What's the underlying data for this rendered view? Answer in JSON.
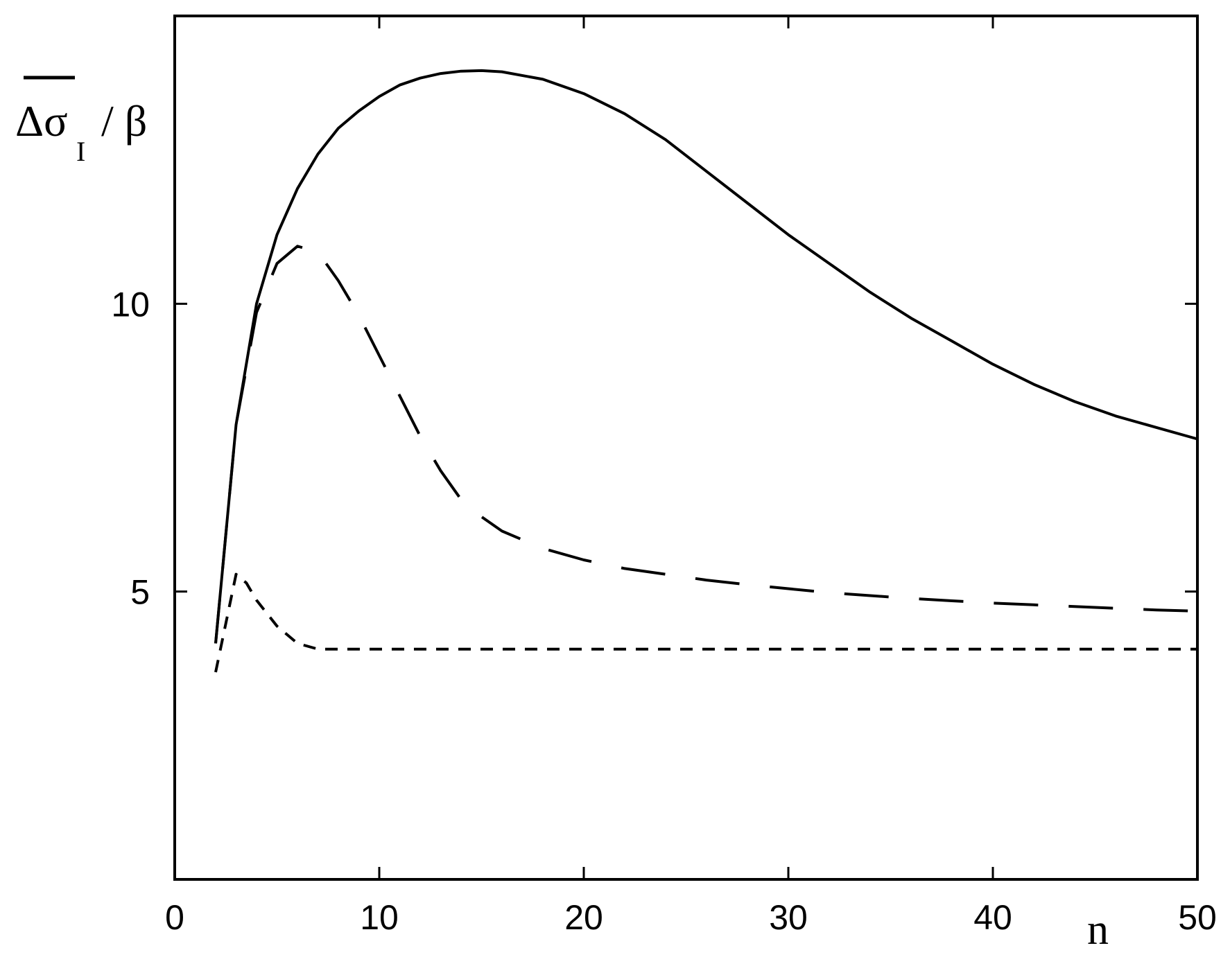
{
  "chart_data": {
    "type": "line",
    "xlim": [
      0,
      50
    ],
    "ylim": [
      0,
      15
    ],
    "xticks": [
      0,
      10,
      20,
      30,
      40,
      50
    ],
    "yticks": [
      5,
      10
    ],
    "ylabel": {
      "main": "Δσ",
      "sub": "I",
      "tail": "/ β"
    },
    "xlabel": "n",
    "grid": false,
    "series": [
      {
        "style": "solid",
        "x": [
          2,
          3,
          4,
          5,
          6,
          7,
          8,
          9,
          10,
          11,
          12,
          13,
          14,
          15,
          16,
          18,
          20,
          22,
          24,
          26,
          28,
          30,
          32,
          34,
          36,
          38,
          40,
          42,
          44,
          46,
          48,
          50
        ],
        "y": [
          4.1,
          7.9,
          10.0,
          11.2,
          12.0,
          12.6,
          13.05,
          13.35,
          13.6,
          13.8,
          13.92,
          14.0,
          14.04,
          14.05,
          14.03,
          13.9,
          13.65,
          13.3,
          12.85,
          12.3,
          11.75,
          11.2,
          10.7,
          10.2,
          9.75,
          9.35,
          8.95,
          8.6,
          8.3,
          8.05,
          7.85,
          7.65
        ]
      },
      {
        "style": "long-dash",
        "x": [
          2,
          3,
          4,
          5,
          6,
          7,
          8,
          9,
          10,
          11,
          12,
          13,
          14,
          15,
          16,
          18,
          20,
          22,
          24,
          26,
          28,
          30,
          32,
          34,
          36,
          38,
          40,
          42,
          44,
          46,
          48,
          50
        ],
        "y": [
          4.1,
          7.9,
          9.85,
          10.7,
          11.0,
          10.9,
          10.4,
          9.8,
          9.1,
          8.4,
          7.7,
          7.1,
          6.6,
          6.3,
          6.05,
          5.75,
          5.55,
          5.4,
          5.3,
          5.2,
          5.12,
          5.05,
          4.98,
          4.93,
          4.88,
          4.84,
          4.8,
          4.77,
          4.74,
          4.71,
          4.68,
          4.66
        ]
      },
      {
        "style": "short-dash",
        "x": [
          2,
          3,
          3.5,
          4,
          5,
          6,
          7,
          8,
          10,
          15,
          20,
          30,
          40,
          50
        ],
        "y": [
          3.6,
          5.3,
          5.15,
          4.85,
          4.4,
          4.1,
          4.0,
          4.0,
          4.0,
          4.0,
          4.0,
          4.0,
          4.0,
          4.0
        ]
      }
    ]
  }
}
